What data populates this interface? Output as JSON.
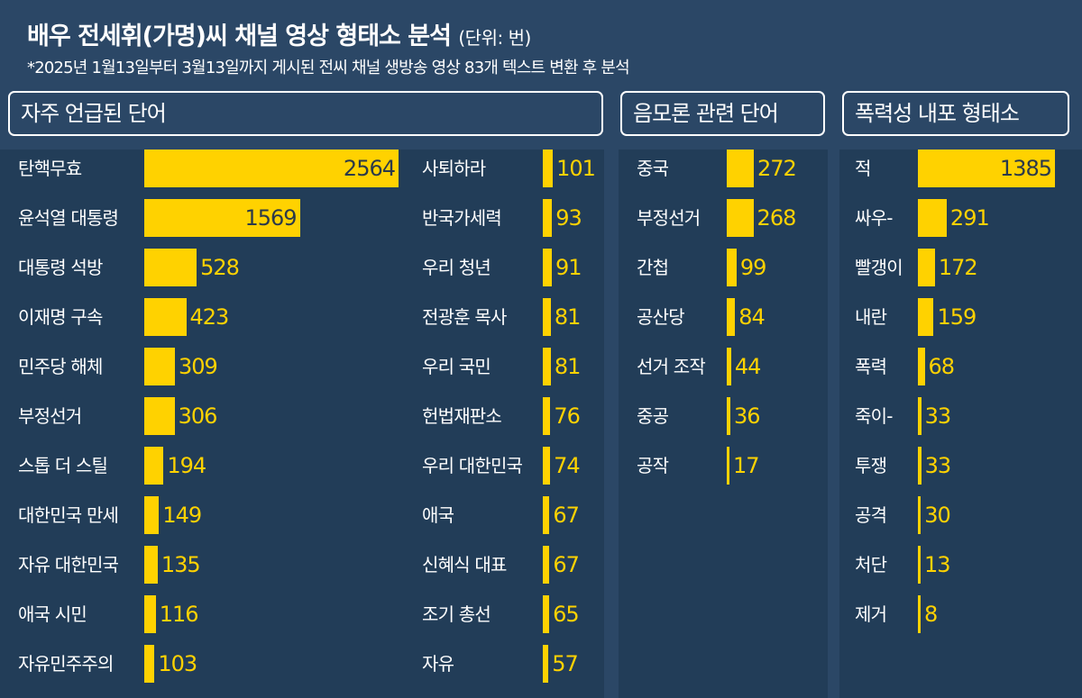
{
  "title": "배우 전세휘(가명)씨 채널 영상 형태소 분석",
  "unit": "(단위: 번)",
  "subtitle": "*2025년 1월13일부터 3월13일까지 게시된 전씨 채널 생방송 영상 83개 텍스트 변환 후 분석",
  "colors": {
    "bar": "#ffd200",
    "background": "#2b4766",
    "panel": "#223d58"
  },
  "chart_data": [
    {
      "type": "bar",
      "title": "자주 언급된 단어",
      "categories": [
        "탄핵무효",
        "윤석열 대통령",
        "대통령 석방",
        "이재명 구속",
        "민주당 해체",
        "부정선거",
        "스톱 더 스틸",
        "대한민국 만세",
        "자유 대한민국",
        "애국 시민",
        "자유민주주의",
        "사퇴하라",
        "반국가세력",
        "우리 청년",
        "전광훈 목사",
        "우리 국민",
        "헌법재판소",
        "우리 대한민국",
        "애국",
        "신혜식 대표",
        "조기 총선",
        "자유"
      ],
      "values": [
        2564,
        1569,
        528,
        423,
        309,
        306,
        194,
        149,
        135,
        116,
        103,
        101,
        93,
        91,
        81,
        81,
        76,
        74,
        67,
        67,
        65,
        57
      ]
    },
    {
      "type": "bar",
      "title": "음모론 관련 단어",
      "categories": [
        "중국",
        "부정선거",
        "간첩",
        "공산당",
        "선거 조작",
        "중공",
        "공작"
      ],
      "values": [
        272,
        268,
        99,
        84,
        44,
        36,
        17
      ]
    },
    {
      "type": "bar",
      "title": "폭력성 내포 형태소",
      "categories": [
        "적",
        "싸우-",
        "빨갱이",
        "내란",
        "폭력",
        "죽이-",
        "투쟁",
        "공격",
        "처단",
        "제거"
      ],
      "values": [
        1385,
        291,
        172,
        159,
        68,
        33,
        33,
        30,
        13,
        8
      ]
    }
  ]
}
